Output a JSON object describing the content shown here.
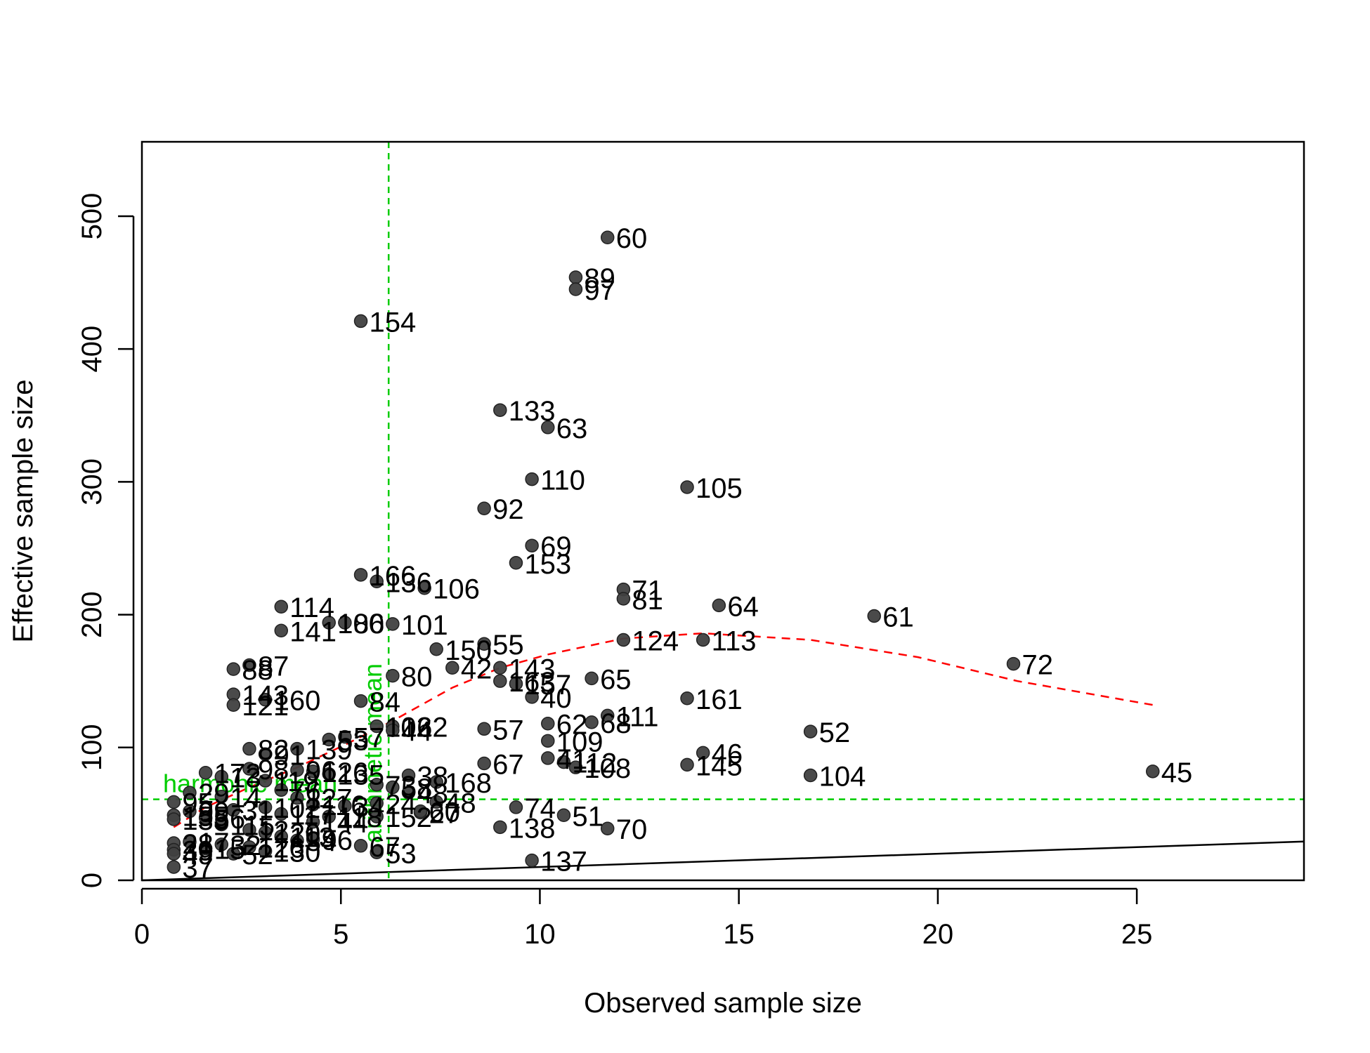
{
  "chart_data": {
    "type": "scatter",
    "title": "",
    "xlabel": "Observed sample size",
    "ylabel": "Effective sample size",
    "xlim": [
      0,
      29.2
    ],
    "ylim": [
      0,
      556
    ],
    "x_ticks": [
      0,
      5,
      10,
      15,
      20,
      25
    ],
    "y_ticks": [
      0,
      100,
      200,
      300,
      400,
      500
    ],
    "grid": false,
    "legend": "none",
    "colors": {
      "points": "#404040",
      "trend": "#ff0000",
      "reference": "#00cc00",
      "identity": "#000000"
    },
    "series": [
      {
        "points": [
          {
            "label": "60",
            "x": 11.7,
            "y": 484
          },
          {
            "label": "89",
            "x": 10.9,
            "y": 454
          },
          {
            "label": "97",
            "x": 10.9,
            "y": 445
          },
          {
            "label": "154",
            "x": 5.5,
            "y": 421
          },
          {
            "label": "133",
            "x": 9.0,
            "y": 354
          },
          {
            "label": "63",
            "x": 10.2,
            "y": 341
          },
          {
            "label": "110",
            "x": 9.8,
            "y": 302
          },
          {
            "label": "105",
            "x": 13.7,
            "y": 296
          },
          {
            "label": "92",
            "x": 8.6,
            "y": 280
          },
          {
            "label": "69",
            "x": 9.8,
            "y": 252
          },
          {
            "label": "153",
            "x": 9.4,
            "y": 239
          },
          {
            "label": "166",
            "x": 5.5,
            "y": 230
          },
          {
            "label": "136",
            "x": 5.9,
            "y": 225
          },
          {
            "label": "106",
            "x": 7.1,
            "y": 220
          },
          {
            "label": "71",
            "x": 12.1,
            "y": 219
          },
          {
            "label": "81",
            "x": 12.1,
            "y": 212
          },
          {
            "label": "64",
            "x": 14.5,
            "y": 207
          },
          {
            "label": "114",
            "x": 3.5,
            "y": 206
          },
          {
            "label": "61",
            "x": 18.4,
            "y": 199
          },
          {
            "label": "100",
            "x": 4.7,
            "y": 194
          },
          {
            "label": "86",
            "x": 5.1,
            "y": 194
          },
          {
            "label": "101",
            "x": 6.3,
            "y": 193
          },
          {
            "label": "141",
            "x": 3.5,
            "y": 188
          },
          {
            "label": "124",
            "x": 12.1,
            "y": 181
          },
          {
            "label": "113",
            "x": 14.1,
            "y": 181
          },
          {
            "label": "55",
            "x": 8.6,
            "y": 178
          },
          {
            "label": "150",
            "x": 7.4,
            "y": 174
          },
          {
            "label": "72",
            "x": 21.9,
            "y": 163
          },
          {
            "label": "87",
            "x": 2.7,
            "y": 162
          },
          {
            "label": "42",
            "x": 7.8,
            "y": 160
          },
          {
            "label": "143",
            "x": 9.0,
            "y": 160
          },
          {
            "label": "88",
            "x": 2.3,
            "y": 159
          },
          {
            "label": "163",
            "x": 9.0,
            "y": 150
          },
          {
            "label": "80",
            "x": 6.3,
            "y": 154
          },
          {
            "label": "65",
            "x": 11.3,
            "y": 152
          },
          {
            "label": "157",
            "x": 9.4,
            "y": 148
          },
          {
            "label": "143",
            "x": 2.3,
            "y": 140
          },
          {
            "label": "40",
            "x": 9.8,
            "y": 138
          },
          {
            "label": "161",
            "x": 13.7,
            "y": 137
          },
          {
            "label": "160",
            "x": 3.1,
            "y": 136
          },
          {
            "label": "84",
            "x": 5.5,
            "y": 135
          },
          {
            "label": "121",
            "x": 2.3,
            "y": 132
          },
          {
            "label": "111",
            "x": 11.7,
            "y": 124
          },
          {
            "label": "68",
            "x": 11.3,
            "y": 119
          },
          {
            "label": "62",
            "x": 10.2,
            "y": 118
          },
          {
            "label": "102",
            "x": 5.9,
            "y": 116
          },
          {
            "label": "162",
            "x": 6.3,
            "y": 116
          },
          {
            "label": "57",
            "x": 8.6,
            "y": 114
          },
          {
            "label": "44",
            "x": 6.3,
            "y": 113
          },
          {
            "label": "52",
            "x": 16.8,
            "y": 112
          },
          {
            "label": "57",
            "x": 5.1,
            "y": 108
          },
          {
            "label": "53",
            "x": 4.7,
            "y": 106
          },
          {
            "label": "109",
            "x": 10.2,
            "y": 105
          },
          {
            "label": "82",
            "x": 2.7,
            "y": 99
          },
          {
            "label": "139",
            "x": 3.9,
            "y": 99
          },
          {
            "label": "46",
            "x": 14.1,
            "y": 96
          },
          {
            "label": "91",
            "x": 3.1,
            "y": 95
          },
          {
            "label": "41",
            "x": 10.2,
            "y": 92
          },
          {
            "label": "112",
            "x": 10.6,
            "y": 89
          },
          {
            "label": "67",
            "x": 8.6,
            "y": 88
          },
          {
            "label": "145",
            "x": 13.7,
            "y": 87
          },
          {
            "label": "108",
            "x": 10.9,
            "y": 85
          },
          {
            "label": "98",
            "x": 2.7,
            "y": 84
          },
          {
            "label": "96",
            "x": 3.9,
            "y": 83
          },
          {
            "label": "126",
            "x": 4.3,
            "y": 82
          },
          {
            "label": "45",
            "x": 25.4,
            "y": 82
          },
          {
            "label": "172",
            "x": 1.6,
            "y": 81
          },
          {
            "label": "135",
            "x": 4.7,
            "y": 80
          },
          {
            "label": "104",
            "x": 16.8,
            "y": 79
          },
          {
            "label": "38",
            "x": 6.7,
            "y": 79
          },
          {
            "label": "13",
            "x": 2.0,
            "y": 78
          },
          {
            "label": "119",
            "x": 3.1,
            "y": 75
          },
          {
            "label": "168",
            "x": 7.4,
            "y": 74
          },
          {
            "label": "73",
            "x": 5.9,
            "y": 72
          },
          {
            "label": "58",
            "x": 6.3,
            "y": 70
          },
          {
            "label": "76",
            "x": 3.5,
            "y": 68
          },
          {
            "label": "29",
            "x": 1.2,
            "y": 66
          },
          {
            "label": "48",
            "x": 6.7,
            "y": 66
          },
          {
            "label": "14",
            "x": 2.0,
            "y": 63
          },
          {
            "label": "127",
            "x": 3.9,
            "y": 62
          },
          {
            "label": "48",
            "x": 7.4,
            "y": 59
          },
          {
            "label": "95",
            "x": 0.8,
            "y": 59
          },
          {
            "label": "24",
            "x": 5.9,
            "y": 58
          },
          {
            "label": "116",
            "x": 4.3,
            "y": 57
          },
          {
            "label": "34",
            "x": 5.1,
            "y": 56
          },
          {
            "label": "74",
            "x": 9.4,
            "y": 55
          },
          {
            "label": "102",
            "x": 3.1,
            "y": 55
          },
          {
            "label": "31",
            "x": 2.3,
            "y": 53
          },
          {
            "label": "99",
            "x": 1.2,
            "y": 52
          },
          {
            "label": "27",
            "x": 7.0,
            "y": 51
          },
          {
            "label": "60",
            "x": 7.0,
            "y": 52
          },
          {
            "label": "51",
            "x": 10.6,
            "y": 49
          },
          {
            "label": "117",
            "x": 3.5,
            "y": 50
          },
          {
            "label": "155",
            "x": 0.8,
            "y": 49
          },
          {
            "label": "152",
            "x": 5.9,
            "y": 48
          },
          {
            "label": "118",
            "x": 4.7,
            "y": 48
          },
          {
            "label": "56",
            "x": 1.6,
            "y": 47
          },
          {
            "label": "135",
            "x": 0.8,
            "y": 46
          },
          {
            "label": "144",
            "x": 4.3,
            "y": 44
          },
          {
            "label": "115",
            "x": 2.0,
            "y": 42
          },
          {
            "label": "138",
            "x": 9.0,
            "y": 40
          },
          {
            "label": "70",
            "x": 11.7,
            "y": 39
          },
          {
            "label": "12",
            "x": 2.7,
            "y": 38
          },
          {
            "label": "120",
            "x": 3.1,
            "y": 36
          },
          {
            "label": "113",
            "x": 3.5,
            "y": 33
          },
          {
            "label": "96",
            "x": 4.3,
            "y": 31
          },
          {
            "label": "34",
            "x": 3.9,
            "y": 30
          },
          {
            "label": "17",
            "x": 1.2,
            "y": 29
          },
          {
            "label": "28",
            "x": 0.8,
            "y": 28
          },
          {
            "label": "32",
            "x": 2.0,
            "y": 27
          },
          {
            "label": "67",
            "x": 5.5,
            "y": 26
          },
          {
            "label": "126",
            "x": 2.7,
            "y": 25
          },
          {
            "label": "15",
            "x": 1.6,
            "y": 24
          },
          {
            "label": "39",
            "x": 0.8,
            "y": 23
          },
          {
            "label": "130",
            "x": 3.1,
            "y": 22
          },
          {
            "label": "53",
            "x": 5.9,
            "y": 21
          },
          {
            "label": "49",
            "x": 0.8,
            "y": 20
          },
          {
            "label": "52",
            "x": 2.3,
            "y": 20
          },
          {
            "label": "137",
            "x": 9.8,
            "y": 15
          },
          {
            "label": "37",
            "x": 0.8,
            "y": 10
          }
        ]
      }
    ],
    "trend_line": {
      "x": [
        0.8,
        1.6,
        2.7,
        3.9,
        5.1,
        6.3,
        7.8,
        9.0,
        10.2,
        12.1,
        14.1,
        16.8,
        19.5,
        22.0,
        25.4
      ],
      "y": [
        40,
        55,
        70,
        85,
        102,
        120,
        145,
        160,
        170,
        182,
        186,
        181,
        168,
        150,
        132
      ]
    },
    "identity_line": {
      "slope": 1
    },
    "reference_lines": [
      {
        "orientation": "horizontal",
        "value": 61,
        "label": "harmonic mean"
      },
      {
        "orientation": "vertical",
        "value": 6.2,
        "label": "arithmetic mean"
      }
    ]
  }
}
